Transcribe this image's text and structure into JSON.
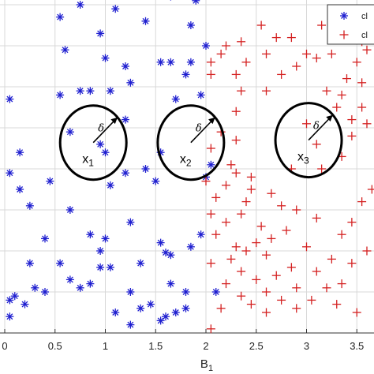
{
  "chart_data": {
    "type": "scatter",
    "xlabel": "B",
    "xlabel_sub": "1",
    "ylabel": "",
    "xlim": [
      0,
      3.7
    ],
    "ylim": [
      0,
      4.15
    ],
    "x_ticks": [
      {
        "value": 0,
        "label": "0"
      },
      {
        "value": 0.5,
        "label": "0.5"
      },
      {
        "value": 1,
        "label": "1"
      },
      {
        "value": 1.5,
        "label": "1.5"
      },
      {
        "value": 2,
        "label": "2"
      },
      {
        "value": 2.5,
        "label": "2.5"
      },
      {
        "value": 3,
        "label": "3"
      },
      {
        "value": 3.5,
        "label": "3.5"
      }
    ],
    "y_grid": [
      0.5,
      1,
      1.5,
      2,
      2.5,
      3,
      3.5,
      4
    ],
    "grid": true,
    "legend_position": "top-right",
    "series": [
      {
        "name": "cl",
        "marker": "asterisk",
        "color": "#1f1fd0",
        "points": [
          [
            0.75,
            4.0
          ],
          [
            1.1,
            3.95
          ],
          [
            1.65,
            4.1
          ],
          [
            1.9,
            4.05
          ],
          [
            0.55,
            3.85
          ],
          [
            1.4,
            3.8
          ],
          [
            1.85,
            3.75
          ],
          [
            0.95,
            3.65
          ],
          [
            2.0,
            3.5
          ],
          [
            0.6,
            3.45
          ],
          [
            1.0,
            3.35
          ],
          [
            1.55,
            3.3
          ],
          [
            1.65,
            3.3
          ],
          [
            1.85,
            3.3
          ],
          [
            1.2,
            3.25
          ],
          [
            1.8,
            3.15
          ],
          [
            1.25,
            3.05
          ],
          [
            0.05,
            2.85
          ],
          [
            0.55,
            2.9
          ],
          [
            0.75,
            2.95
          ],
          [
            0.85,
            2.95
          ],
          [
            1.05,
            2.95
          ],
          [
            1.7,
            2.85
          ],
          [
            1.95,
            2.9
          ],
          [
            1.2,
            2.6
          ],
          [
            0.65,
            2.45
          ],
          [
            0.95,
            2.3
          ],
          [
            1.0,
            2.2
          ],
          [
            1.55,
            2.2
          ],
          [
            0.15,
            2.2
          ],
          [
            1.4,
            2.0
          ],
          [
            2.05,
            2.05
          ],
          [
            0.05,
            1.95
          ],
          [
            1.2,
            1.95
          ],
          [
            2.0,
            1.9
          ],
          [
            0.45,
            1.85
          ],
          [
            1.5,
            1.85
          ],
          [
            1.05,
            1.8
          ],
          [
            0.15,
            1.75
          ],
          [
            0.25,
            1.55
          ],
          [
            0.65,
            1.5
          ],
          [
            1.25,
            1.35
          ],
          [
            0.85,
            1.2
          ],
          [
            1.0,
            1.15
          ],
          [
            1.95,
            1.2
          ],
          [
            1.55,
            1.1
          ],
          [
            0.4,
            1.15
          ],
          [
            0.95,
            1.0
          ],
          [
            1.85,
            1.05
          ],
          [
            1.6,
            0.98
          ],
          [
            1.65,
            0.95
          ],
          [
            0.25,
            0.85
          ],
          [
            0.55,
            0.85
          ],
          [
            0.95,
            0.8
          ],
          [
            1.05,
            0.8
          ],
          [
            1.35,
            0.85
          ],
          [
            0.65,
            0.65
          ],
          [
            0.85,
            0.6
          ],
          [
            1.65,
            0.6
          ],
          [
            0.3,
            0.55
          ],
          [
            0.75,
            0.55
          ],
          [
            1.25,
            0.5
          ],
          [
            1.8,
            0.5
          ],
          [
            0.4,
            0.5
          ],
          [
            0.1,
            0.45
          ],
          [
            0.2,
            0.35
          ],
          [
            0.05,
            0.4
          ],
          [
            2.1,
            0.5
          ],
          [
            1.45,
            0.35
          ],
          [
            1.1,
            0.25
          ],
          [
            1.35,
            0.3
          ],
          [
            0.05,
            0.2
          ],
          [
            1.6,
            0.2
          ],
          [
            1.55,
            0.15
          ],
          [
            1.7,
            0.25
          ],
          [
            1.8,
            0.3
          ],
          [
            1.25,
            0.1
          ]
        ]
      },
      {
        "name": "cl",
        "marker": "plus",
        "color": "#d42020",
        "points": [
          [
            2.45,
            4.15
          ],
          [
            3.35,
            3.95
          ],
          [
            2.55,
            3.75
          ],
          [
            3.15,
            3.75
          ],
          [
            3.4,
            3.85
          ],
          [
            2.7,
            3.6
          ],
          [
            3.3,
            3.6
          ],
          [
            2.2,
            3.5
          ],
          [
            2.35,
            3.55
          ],
          [
            2.85,
            3.6
          ],
          [
            3.55,
            3.55
          ],
          [
            2.15,
            3.4
          ],
          [
            2.6,
            3.4
          ],
          [
            3.0,
            3.4
          ],
          [
            3.25,
            3.4
          ],
          [
            3.6,
            3.45
          ],
          [
            3.1,
            3.35
          ],
          [
            2.05,
            3.3
          ],
          [
            2.4,
            3.3
          ],
          [
            2.9,
            3.25
          ],
          [
            3.5,
            3.3
          ],
          [
            2.05,
            3.15
          ],
          [
            2.3,
            3.15
          ],
          [
            2.75,
            3.15
          ],
          [
            3.4,
            3.1
          ],
          [
            3.55,
            3.05
          ],
          [
            3.2,
            2.95
          ],
          [
            3.35,
            2.9
          ],
          [
            2.6,
            2.95
          ],
          [
            2.35,
            2.95
          ],
          [
            3.3,
            2.75
          ],
          [
            3.55,
            2.75
          ],
          [
            2.3,
            2.7
          ],
          [
            3.45,
            2.6
          ],
          [
            3.6,
            2.55
          ],
          [
            3.0,
            2.55
          ],
          [
            2.15,
            2.45
          ],
          [
            2.3,
            2.35
          ],
          [
            3.45,
            2.4
          ],
          [
            3.1,
            2.3
          ],
          [
            2.05,
            2.25
          ],
          [
            3.35,
            2.15
          ],
          [
            2.25,
            2.05
          ],
          [
            2.3,
            1.95
          ],
          [
            2.85,
            2.0
          ],
          [
            3.15,
            2.0
          ],
          [
            2.45,
            1.9
          ],
          [
            2.0,
            1.85
          ],
          [
            2.2,
            1.8
          ],
          [
            3.65,
            1.75
          ],
          [
            2.45,
            1.75
          ],
          [
            2.65,
            1.7
          ],
          [
            2.1,
            1.65
          ],
          [
            2.4,
            1.6
          ],
          [
            3.55,
            1.6
          ],
          [
            2.75,
            1.55
          ],
          [
            2.9,
            1.5
          ],
          [
            2.05,
            1.45
          ],
          [
            2.35,
            1.45
          ],
          [
            3.1,
            1.4
          ],
          [
            2.2,
            1.35
          ],
          [
            3.45,
            1.35
          ],
          [
            2.55,
            1.3
          ],
          [
            2.8,
            1.25
          ],
          [
            2.1,
            1.2
          ],
          [
            3.35,
            1.2
          ],
          [
            2.65,
            1.15
          ],
          [
            2.5,
            1.1
          ],
          [
            2.3,
            1.05
          ],
          [
            3.0,
            1.05
          ],
          [
            2.4,
            1.0
          ],
          [
            3.6,
            1.0
          ],
          [
            2.6,
            0.95
          ],
          [
            2.25,
            0.9
          ],
          [
            3.25,
            0.9
          ],
          [
            2.05,
            0.85
          ],
          [
            3.45,
            0.85
          ],
          [
            2.85,
            0.8
          ],
          [
            2.35,
            0.75
          ],
          [
            3.1,
            0.75
          ],
          [
            2.7,
            0.7
          ],
          [
            2.5,
            0.65
          ],
          [
            3.35,
            0.6
          ],
          [
            2.2,
            0.6
          ],
          [
            2.9,
            0.55
          ],
          [
            2.6,
            0.5
          ],
          [
            3.2,
            0.55
          ],
          [
            2.35,
            0.45
          ],
          [
            2.75,
            0.4
          ],
          [
            3.05,
            0.4
          ],
          [
            2.45,
            0.35
          ],
          [
            3.3,
            0.35
          ],
          [
            2.15,
            0.3
          ],
          [
            2.9,
            0.3
          ],
          [
            2.6,
            0.25
          ],
          [
            3.5,
            0.25
          ],
          [
            2.05,
            0.05
          ]
        ]
      }
    ],
    "annotations": [
      {
        "label": "x",
        "sub": "1",
        "delta": "δ",
        "cx": 0.88,
        "cy": 2.32,
        "r": 0.34
      },
      {
        "label": "x",
        "sub": "2",
        "delta": "δ",
        "cx": 1.85,
        "cy": 2.32,
        "r": 0.34
      },
      {
        "label": "x",
        "sub": "3",
        "delta": "δ",
        "cx": 3.02,
        "cy": 2.35,
        "r": 0.34
      }
    ],
    "legend": [
      {
        "label": "cl",
        "marker": "asterisk",
        "color": "#1f1fd0"
      },
      {
        "label": "cl",
        "marker": "plus",
        "color": "#d42020"
      }
    ]
  }
}
